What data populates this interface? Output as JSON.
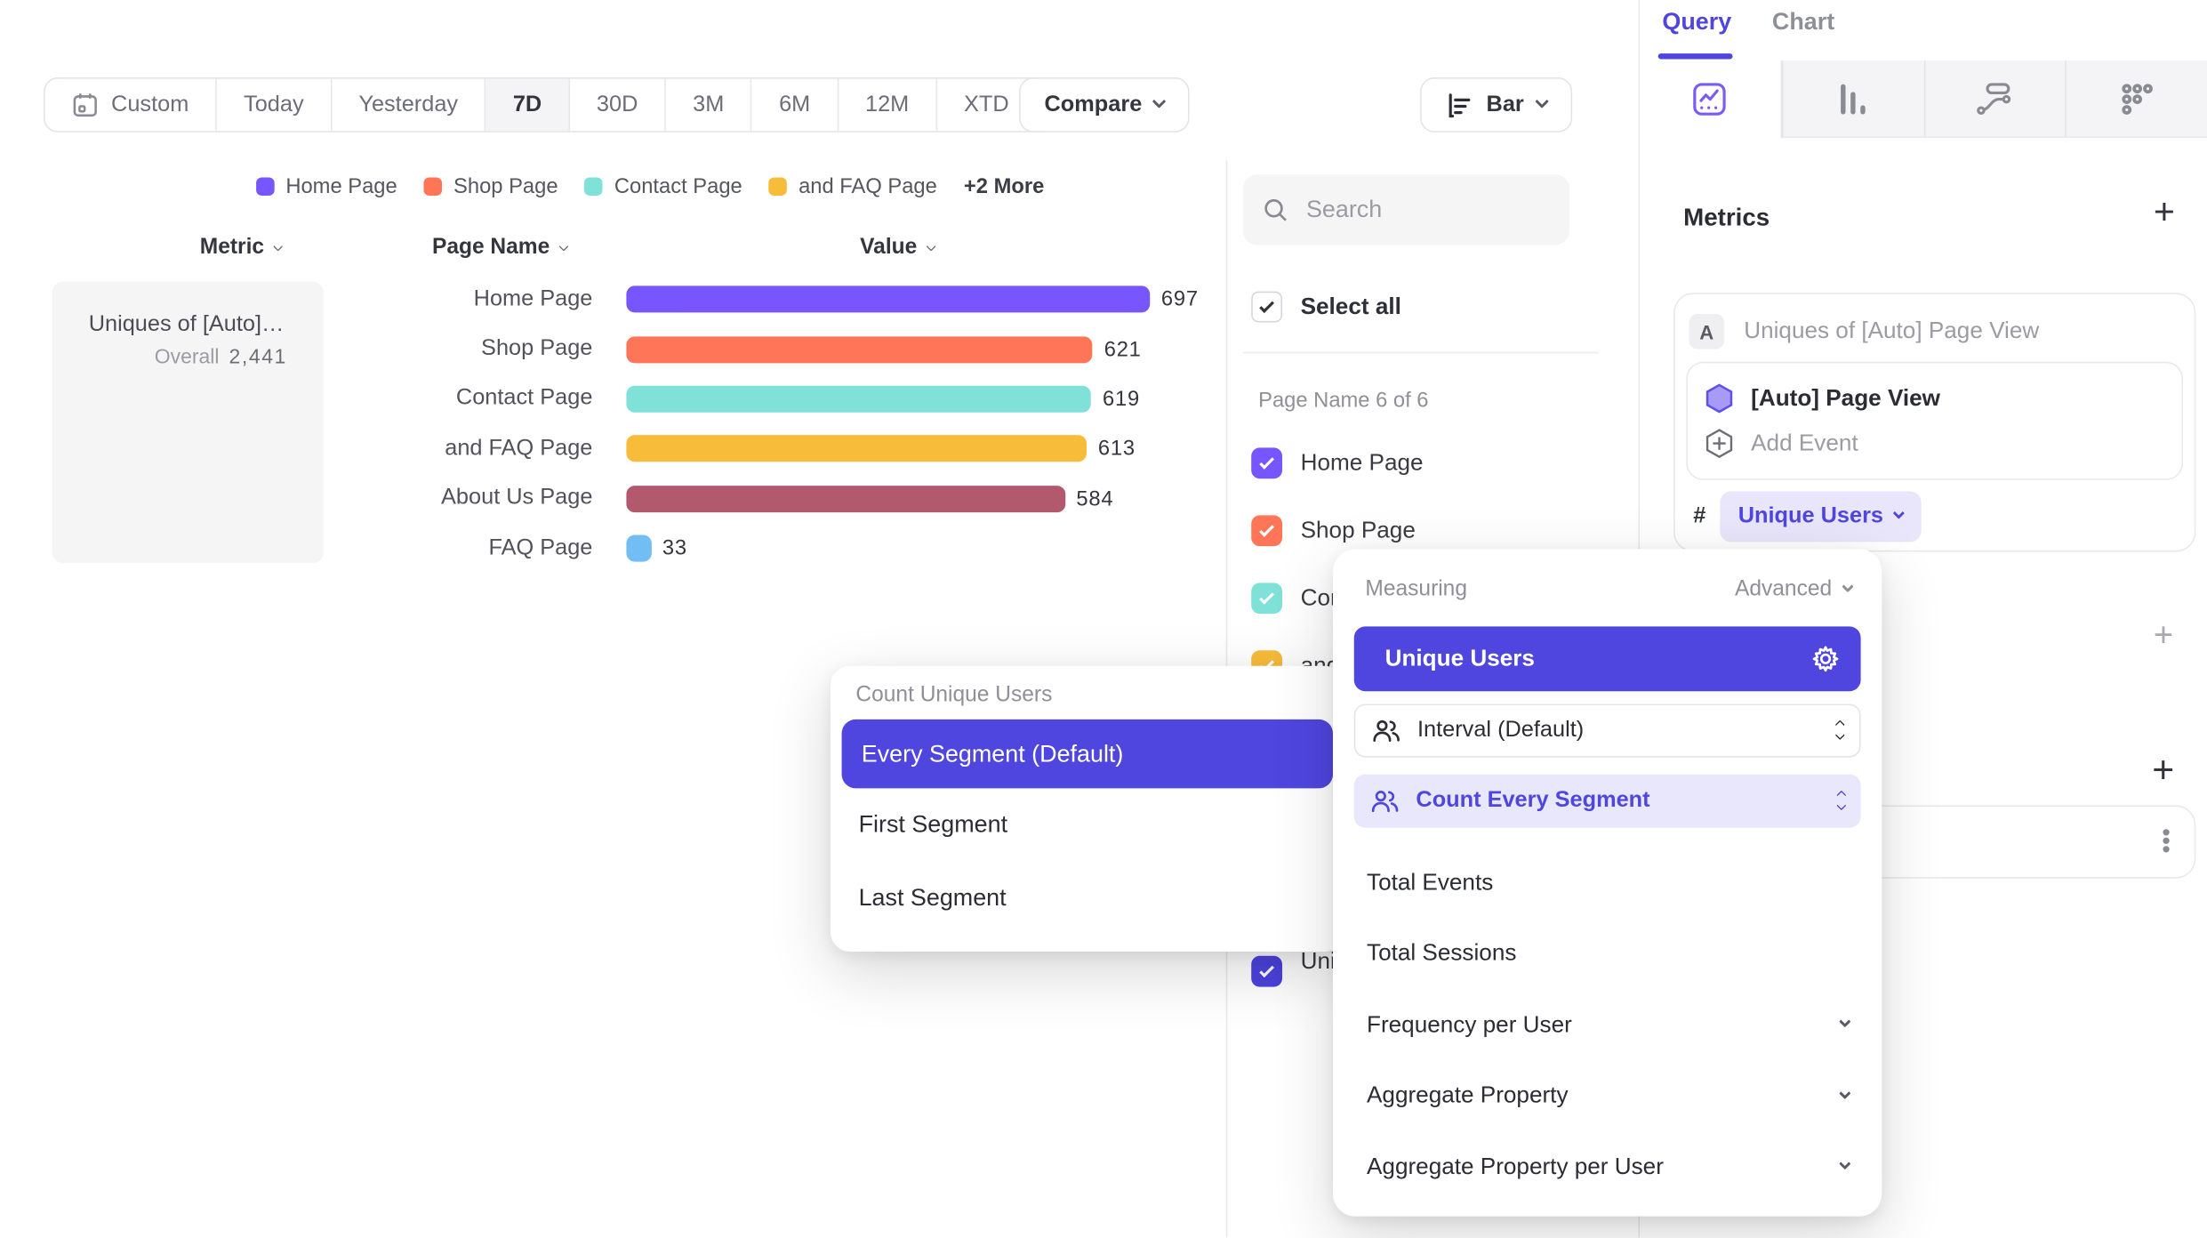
{
  "colors": {
    "accent": "#4f46df",
    "accent_light": "#e9e7fb",
    "series_purple": "#7856FF",
    "series_coral": "#FF7557",
    "series_teal": "#80E1D9",
    "series_amber": "#F8BC3B",
    "series_maroon": "#B2596E",
    "series_blue": "#72BEF4"
  },
  "toolbar": {
    "ranges": [
      {
        "label": "Custom",
        "icon": "calendar"
      },
      {
        "label": "Today"
      },
      {
        "label": "Yesterday"
      },
      {
        "label": "7D",
        "active": true
      },
      {
        "label": "30D"
      },
      {
        "label": "3M"
      },
      {
        "label": "6M"
      },
      {
        "label": "12M"
      },
      {
        "label": "XTD",
        "chevron": true
      }
    ],
    "compare_label": "Compare",
    "chart_type_label": "Bar"
  },
  "legend": {
    "items": [
      {
        "label": "Home Page",
        "color": "#7856FF"
      },
      {
        "label": "Shop Page",
        "color": "#FF7557"
      },
      {
        "label": "Contact Page",
        "color": "#80E1D9"
      },
      {
        "label": "and FAQ Page",
        "color": "#F8BC3B"
      }
    ],
    "more_label": "+2 More"
  },
  "table_headers": {
    "metric": "Metric",
    "segment": "Page Name",
    "value": "Value"
  },
  "metric_cell": {
    "title": "Uniques of [Auto] Page View",
    "overall_label": "Overall",
    "overall_value": "2,441"
  },
  "chart_data": {
    "type": "bar",
    "orientation": "horizontal",
    "title": "Uniques of [Auto] Page View",
    "overall_total": 2441,
    "xlim": [
      0,
      697
    ],
    "value_labels": true,
    "rows": [
      {
        "category": "Home Page",
        "value": 697,
        "color": "#7856FF"
      },
      {
        "category": "Shop Page",
        "value": 621,
        "color": "#FF7557"
      },
      {
        "category": "Contact Page",
        "value": 619,
        "color": "#80E1D9"
      },
      {
        "category": "and FAQ Page",
        "value": 613,
        "color": "#F8BC3B"
      },
      {
        "category": "About Us Page",
        "value": 584,
        "color": "#B2596E"
      },
      {
        "category": "FAQ Page",
        "value": 33,
        "color": "#72BEF4"
      }
    ]
  },
  "filter_panel": {
    "search_placeholder": "Search",
    "select_all_label": "Select all",
    "group_label": "Page Name 6 of 6",
    "items": [
      {
        "label": "Home Page",
        "color": "#7856FF",
        "checked": true
      },
      {
        "label": "Shop Page",
        "color": "#FF7557",
        "checked": true
      },
      {
        "label": "Contact Page",
        "color": "#80E1D9",
        "checked": true
      },
      {
        "label": "and FAQ Page",
        "color": "#F8BC3B",
        "checked": true
      },
      {
        "label": "About Us Page",
        "color": "#B2596E",
        "checked": true
      },
      {
        "label": "FAQ Page",
        "color": "#72BEF4",
        "checked": true
      }
    ],
    "metric_item": {
      "label": "Uniques of [Auto] Page View",
      "color": "#4c43df",
      "checked": true
    }
  },
  "query_panel": {
    "tabs": [
      {
        "label": "Query",
        "active": true
      },
      {
        "label": "Chart"
      }
    ],
    "report_icons": [
      "insights",
      "funnels",
      "flows",
      "retention"
    ],
    "metrics": {
      "title": "Metrics",
      "series_badge": "A",
      "series_title": "Uniques of [Auto] Page View",
      "event_name": "[Auto] Page View",
      "add_event_label": "Add Event",
      "count_symbol": "#",
      "measurement_label": "Unique Users"
    }
  },
  "measuring_popup": {
    "title": "Measuring",
    "advanced_label": "Advanced",
    "selected_label": "Unique Users",
    "interval_label": "Interval (Default)",
    "segment_mode_label": "Count Every Segment",
    "options": [
      {
        "label": "Total Events"
      },
      {
        "label": "Total Sessions"
      },
      {
        "label": "Frequency per User",
        "chevron": true
      },
      {
        "label": "Aggregate Property",
        "chevron": true
      },
      {
        "label": "Aggregate Property per User",
        "chevron": true
      }
    ]
  },
  "count_popup": {
    "title": "Count Unique Users",
    "options": [
      {
        "label": "Every Segment (Default)",
        "selected": true
      },
      {
        "label": "First Segment"
      },
      {
        "label": "Last Segment"
      }
    ]
  }
}
